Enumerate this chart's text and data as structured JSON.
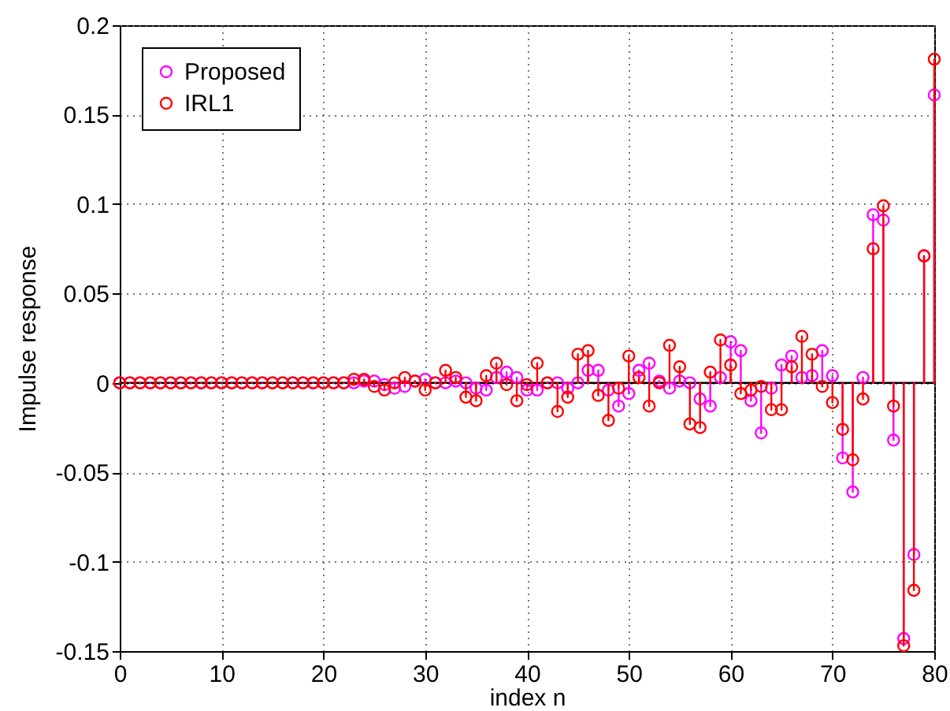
{
  "chart_data": {
    "type": "lollipop",
    "xlabel": "index n",
    "ylabel": "Impulse response",
    "x": [
      0,
      1,
      2,
      3,
      4,
      5,
      6,
      7,
      8,
      9,
      10,
      11,
      12,
      13,
      14,
      15,
      16,
      17,
      18,
      19,
      20,
      21,
      22,
      23,
      24,
      25,
      26,
      27,
      28,
      29,
      30,
      31,
      32,
      33,
      34,
      35,
      36,
      37,
      38,
      39,
      40,
      41,
      42,
      43,
      44,
      45,
      46,
      47,
      48,
      49,
      50,
      51,
      52,
      53,
      54,
      55,
      56,
      57,
      58,
      59,
      60,
      61,
      62,
      63,
      64,
      65,
      66,
      67,
      68,
      69,
      70,
      71,
      72,
      73,
      74,
      75,
      76,
      77,
      78,
      79,
      80
    ],
    "series": [
      {
        "name": "Proposed",
        "color": "#ff00ff",
        "values": [
          0,
          0,
          0,
          0,
          0,
          0,
          0,
          0,
          0,
          0,
          0,
          0,
          0,
          0,
          0,
          0,
          0,
          0,
          0,
          0,
          0,
          0,
          0,
          0,
          0.001,
          0.001,
          -0.001,
          -0.003,
          -0.002,
          0.001,
          0.002,
          0,
          0,
          0.001,
          0,
          -0.003,
          -0.004,
          0.003,
          0.006,
          0.003,
          -0.004,
          -0.004,
          0,
          0,
          -0.003,
          0,
          0.007,
          0.007,
          -0.004,
          -0.013,
          -0.006,
          0.007,
          0.011,
          0.001,
          -0.003,
          0.001,
          0,
          -0.009,
          -0.013,
          0.003,
          0.023,
          0.018,
          -0.01,
          -0.028,
          -0.003,
          0.01,
          0.015,
          0.003,
          0.004,
          0.018,
          0.004,
          -0.042,
          -0.061,
          0.003,
          0.094,
          0.091,
          -0.032,
          -0.143,
          -0.096,
          0.071,
          0.161
        ]
      },
      {
        "name": "IRL1",
        "color": "#ff0000",
        "values": [
          0,
          0,
          0,
          0,
          0,
          0,
          0,
          0,
          0,
          0,
          0,
          0,
          0,
          0,
          0,
          0,
          0,
          0,
          0,
          0,
          0,
          0,
          0,
          0.002,
          0.002,
          -0.002,
          -0.004,
          0,
          0.003,
          0.001,
          -0.004,
          0,
          0.007,
          0.003,
          -0.008,
          -0.01,
          0.004,
          0.011,
          -0.001,
          -0.01,
          -0.001,
          0.011,
          0,
          -0.016,
          -0.008,
          0.016,
          0.018,
          -0.007,
          -0.021,
          -0.003,
          0.015,
          0.003,
          -0.013,
          0,
          0.021,
          0.009,
          -0.023,
          -0.025,
          0.006,
          0.024,
          0.01,
          -0.006,
          -0.004,
          -0.002,
          -0.015,
          -0.015,
          0.009,
          0.026,
          0.016,
          -0.002,
          -0.011,
          -0.026,
          -0.043,
          -0.009,
          0.075,
          0.099,
          -0.013,
          -0.147,
          -0.116,
          0.071,
          0.181
        ]
      }
    ],
    "xlim": [
      0,
      80
    ],
    "xticks": [
      0,
      10,
      20,
      30,
      40,
      50,
      60,
      70,
      80
    ],
    "ylim": [
      -0.15,
      0.2
    ],
    "yticks": [
      -0.15,
      -0.1,
      -0.05,
      0,
      0.05,
      0.1,
      0.15,
      0.2
    ],
    "grid": true,
    "legend": "top left",
    "marker": "circle",
    "line_style": "solid"
  }
}
